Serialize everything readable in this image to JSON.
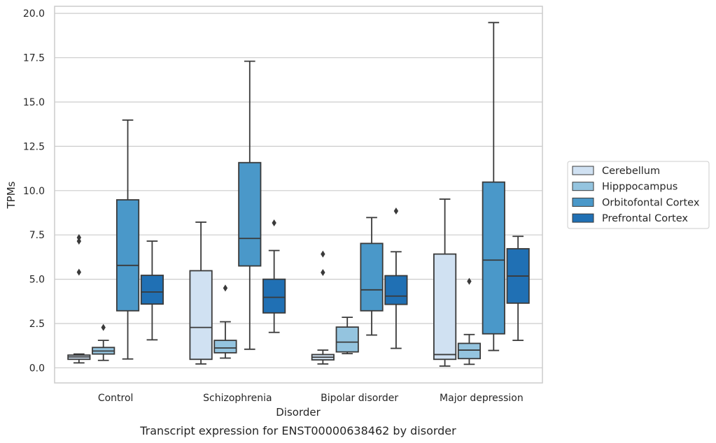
{
  "caption": "Transcript expression for ENST00000638462 by disorder",
  "chart_data": {
    "type": "box",
    "title": "",
    "xlabel": "Disorder",
    "ylabel": "TPMs",
    "ylim": [
      -0.85,
      20.4
    ],
    "yticks": [
      "0.0",
      "2.5",
      "5.0",
      "7.5",
      "10.0",
      "12.5",
      "15.0",
      "17.5",
      "20.0"
    ],
    "categories": [
      "Control",
      "Schizophrenia",
      "Bipolar disorder",
      "Major depression"
    ],
    "grid": "horizontal",
    "legend_position": "right",
    "series": [
      {
        "name": "Cerebellum",
        "color": "#d0e1f2",
        "boxes": [
          {
            "whislo": 0.28,
            "q1": 0.48,
            "med": 0.62,
            "q3": 0.72,
            "whishi": 0.78,
            "fliers": [
              7.35,
              7.15,
              5.4
            ]
          },
          {
            "whislo": 0.22,
            "q1": 0.48,
            "med": 2.28,
            "q3": 5.48,
            "whishi": 8.22,
            "fliers": []
          },
          {
            "whislo": 0.22,
            "q1": 0.45,
            "med": 0.6,
            "q3": 0.75,
            "whishi": 1.0,
            "fliers": [
              6.42,
              5.38
            ]
          },
          {
            "whislo": 0.1,
            "q1": 0.48,
            "med": 0.75,
            "q3": 6.42,
            "whishi": 9.52,
            "fliers": []
          }
        ]
      },
      {
        "name": "Hipppocampus",
        "color": "#94c4df",
        "boxes": [
          {
            "whislo": 0.42,
            "q1": 0.78,
            "med": 0.95,
            "q3": 1.15,
            "whishi": 1.55,
            "fliers": [
              2.28
            ]
          },
          {
            "whislo": 0.55,
            "q1": 0.85,
            "med": 1.12,
            "q3": 1.55,
            "whishi": 2.6,
            "fliers": [
              4.5
            ]
          },
          {
            "whislo": 0.8,
            "q1": 0.9,
            "med": 1.45,
            "q3": 2.3,
            "whishi": 2.85,
            "fliers": []
          },
          {
            "whislo": 0.2,
            "q1": 0.52,
            "med": 1.0,
            "q3": 1.38,
            "whishi": 1.88,
            "fliers": [
              4.88
            ]
          }
        ]
      },
      {
        "name": "Orbitofontal Cortex",
        "color": "#4a98c9",
        "boxes": [
          {
            "whislo": 0.5,
            "q1": 3.22,
            "med": 5.78,
            "q3": 9.48,
            "whishi": 13.98,
            "fliers": []
          },
          {
            "whislo": 1.05,
            "q1": 5.75,
            "med": 7.3,
            "q3": 11.58,
            "whishi": 17.3,
            "fliers": []
          },
          {
            "whislo": 1.85,
            "q1": 3.22,
            "med": 4.4,
            "q3": 7.02,
            "whishi": 8.48,
            "fliers": []
          },
          {
            "whislo": 0.98,
            "q1": 1.92,
            "med": 6.08,
            "q3": 10.48,
            "whishi": 19.48,
            "fliers": []
          }
        ]
      },
      {
        "name": "Prefrontal Cortex",
        "color": "#2070b4",
        "boxes": [
          {
            "whislo": 1.58,
            "q1": 3.6,
            "med": 4.28,
            "q3": 5.22,
            "whishi": 7.15,
            "fliers": []
          },
          {
            "whislo": 2.0,
            "q1": 3.1,
            "med": 3.98,
            "q3": 5.0,
            "whishi": 6.62,
            "fliers": [
              8.18
            ]
          },
          {
            "whislo": 1.1,
            "q1": 3.58,
            "med": 4.05,
            "q3": 5.2,
            "whishi": 6.55,
            "fliers": [
              8.85
            ]
          },
          {
            "whislo": 1.55,
            "q1": 3.65,
            "med": 5.18,
            "q3": 6.72,
            "whishi": 7.42,
            "fliers": []
          }
        ]
      }
    ]
  }
}
